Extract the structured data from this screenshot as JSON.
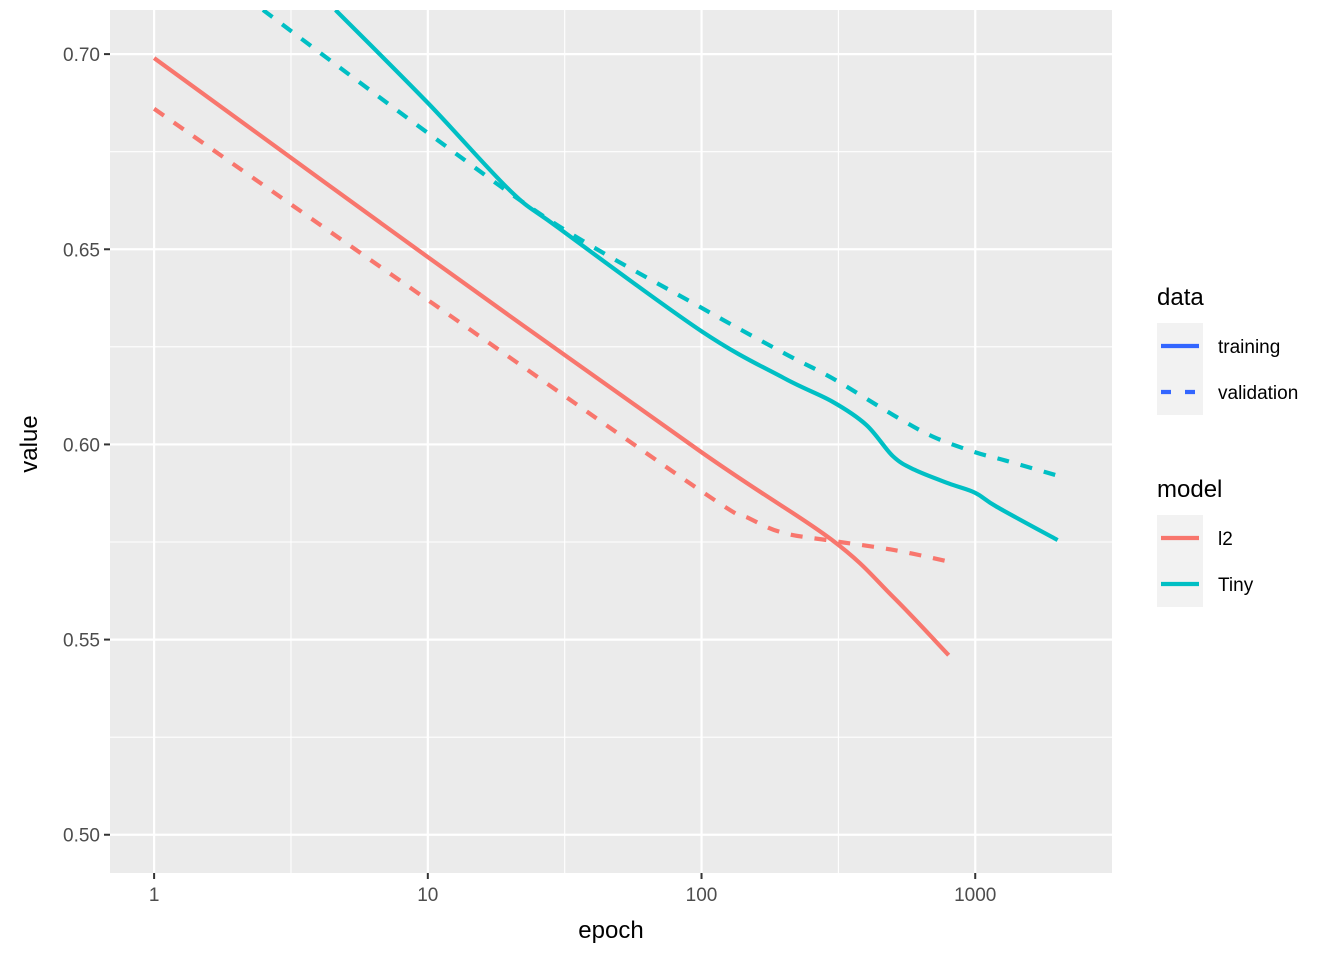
{
  "chart_data": {
    "type": "line",
    "title": "",
    "xlabel": "epoch",
    "ylabel": "value",
    "xscale": "log10",
    "xlim": [
      0.69,
      3160
    ],
    "ylim": [
      0.4902,
      0.7113
    ],
    "x_ticks": [
      1,
      10,
      100,
      1000
    ],
    "x_tick_labels": [
      "1",
      "10",
      "100",
      "1000"
    ],
    "y_ticks": [
      0.5,
      0.55,
      0.6,
      0.65,
      0.7
    ],
    "y_tick_labels": [
      "0.50",
      "0.55",
      "0.60",
      "0.65",
      "0.70"
    ],
    "grid": true,
    "legend_placement": "right",
    "legends": [
      {
        "title": "data",
        "entries": [
          {
            "label": "training",
            "linetype": "solid",
            "color": "#3366FF"
          },
          {
            "label": "validation",
            "linetype": "dashed",
            "color": "#3366FF"
          }
        ]
      },
      {
        "title": "model",
        "entries": [
          {
            "label": "l2",
            "color": "#F8766D"
          },
          {
            "label": "Tiny",
            "color": "#00BFC4"
          }
        ]
      }
    ],
    "series": [
      {
        "name": "l2 training",
        "model": "l2",
        "data": "training",
        "color": "#F8766D",
        "linetype": "solid",
        "x": [
          1,
          10,
          100,
          300,
          500,
          800
        ],
        "y": [
          0.699,
          0.648,
          0.598,
          0.5755,
          0.561,
          0.546
        ]
      },
      {
        "name": "l2 validation",
        "model": "l2",
        "data": "validation",
        "color": "#F8766D",
        "linetype": "dashed",
        "x": [
          1,
          10,
          100,
          150,
          200,
          300,
          500,
          800
        ],
        "y": [
          0.686,
          0.637,
          0.588,
          0.581,
          0.5773,
          0.5753,
          0.573,
          0.57
        ]
      },
      {
        "name": "Tiny training",
        "model": "Tiny",
        "data": "training",
        "color": "#00BFC4",
        "linetype": "solid",
        "x": [
          4.6,
          10,
          20,
          30,
          100,
          200,
          300,
          400,
          500,
          600,
          800,
          1000,
          1200,
          2000
        ],
        "y": [
          0.7113,
          0.6875,
          0.665,
          0.6555,
          0.629,
          0.617,
          0.611,
          0.605,
          0.597,
          0.5935,
          0.59,
          0.5876,
          0.584,
          0.5755
        ]
      },
      {
        "name": "Tiny validation",
        "model": "Tiny",
        "data": "validation",
        "color": "#00BFC4",
        "linetype": "dashed",
        "x": [
          2.5,
          10,
          30,
          100,
          200,
          300,
          500,
          700,
          1000,
          1300,
          2000
        ],
        "y": [
          0.7113,
          0.6798,
          0.656,
          0.635,
          0.6234,
          0.617,
          0.6076,
          0.602,
          0.598,
          0.5958,
          0.592
        ]
      }
    ]
  }
}
